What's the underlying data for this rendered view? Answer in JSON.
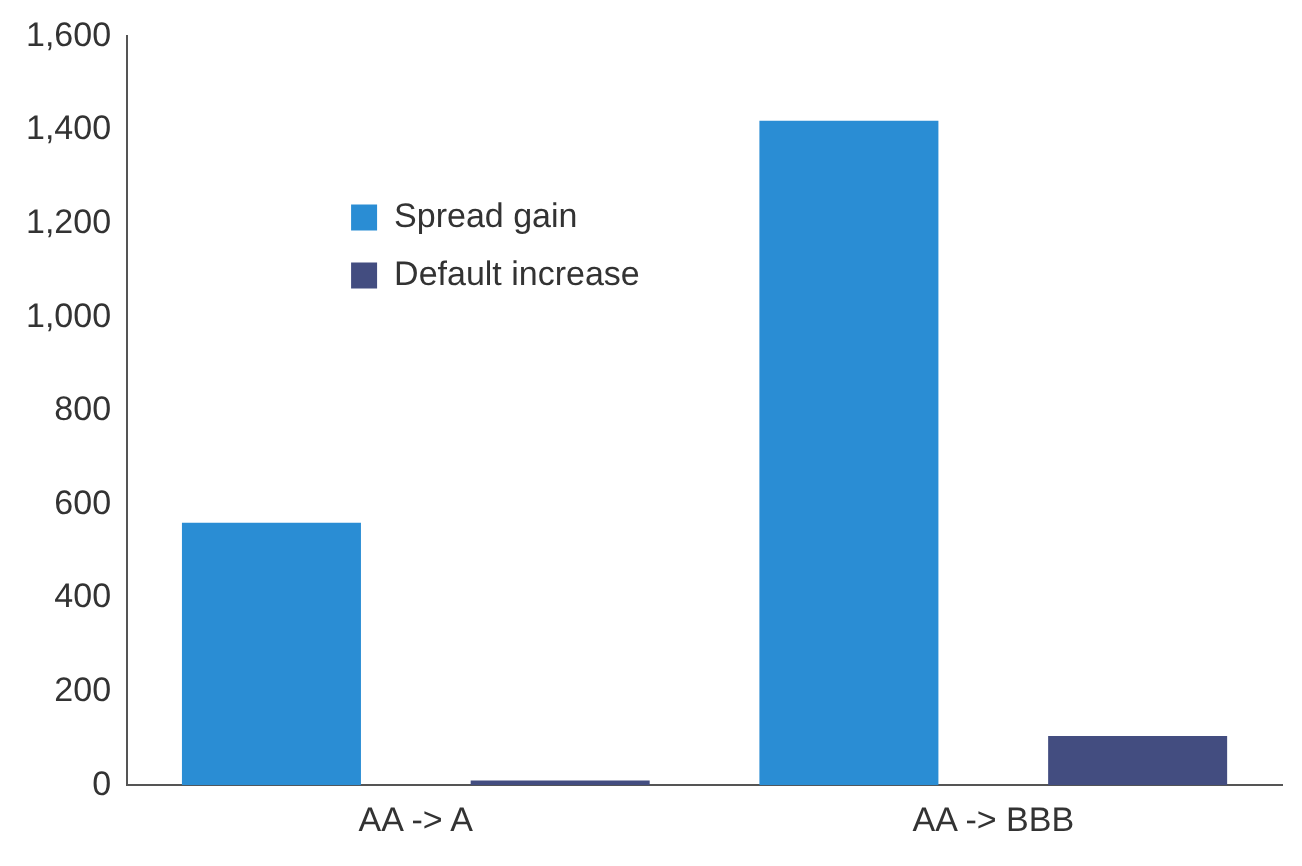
{
  "chart_data": {
    "type": "bar",
    "categories": [
      "AA -> A",
      "AA -> BBB"
    ],
    "series": [
      {
        "name": "Spread gain",
        "color": "#2a8dd4",
        "values": [
          561,
          1420
        ]
      },
      {
        "name": "Default increase",
        "color": "#434d80",
        "values": [
          10,
          105
        ]
      }
    ],
    "ylim": [
      0,
      1600
    ],
    "yticks": [
      0,
      {
        "value": 200,
        "label": "200"
      },
      {
        "value": 400,
        "label": "400"
      },
      {
        "value": 600,
        "label": "600"
      },
      {
        "value": 800,
        "label": "800"
      },
      {
        "value": 1000,
        "label": "1,000"
      },
      {
        "value": 1200,
        "label": "1,200"
      },
      {
        "value": 1400,
        "label": "1,400"
      },
      {
        "value": 1600,
        "label": "1,600"
      }
    ],
    "grid": false,
    "legend": "top left"
  }
}
